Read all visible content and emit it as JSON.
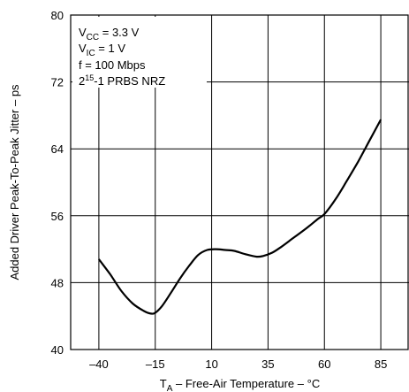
{
  "chart_data": {
    "type": "line",
    "xlabel_main": "T",
    "xlabel_sub": "A",
    "xlabel_rest": " – Free-Air Temperature –  °C",
    "ylabel": "Added Driver Peak-To-Peak Jitter – ps",
    "xticks": [
      -40,
      -15,
      10,
      35,
      60,
      85
    ],
    "xtick_labels": [
      "–40",
      "–15",
      "10",
      "35",
      "60",
      "85"
    ],
    "yticks": [
      40,
      48,
      56,
      64,
      72,
      80
    ],
    "ytick_labels": [
      "40",
      "48",
      "56",
      "64",
      "72",
      "80"
    ],
    "xlim": [
      -52.5,
      97.5
    ],
    "ylim": [
      40,
      80
    ],
    "grid": true,
    "conditions": {
      "vcc_main": "V",
      "vcc_sub": "CC",
      "vcc_rest": " = 3.3 V",
      "vic_main": "V",
      "vic_sub": "IC",
      "vic_rest": "  = 1 V",
      "freq": "f = 100 Mbps",
      "prbs_main": "2",
      "prbs_sup": "15",
      "prbs_rest": "-1 PRBS NRZ"
    },
    "series": [
      {
        "color": "#000000",
        "x": [
          -40,
          -35,
          -30,
          -25,
          -20,
          -17,
          -15,
          -12,
          -8,
          -4,
          0,
          4,
          8,
          12,
          16,
          20,
          25,
          30,
          33,
          37,
          41,
          46,
          52,
          57,
          60,
          65,
          70,
          75,
          80,
          85
        ],
        "y": [
          50.8,
          49.0,
          47.0,
          45.5,
          44.6,
          44.3,
          44.4,
          45.2,
          46.8,
          48.5,
          50.0,
          51.3,
          51.9,
          52.0,
          51.9,
          51.8,
          51.4,
          51.1,
          51.2,
          51.6,
          52.3,
          53.3,
          54.5,
          55.6,
          56.2,
          58.0,
          60.2,
          62.5,
          65.0,
          67.5
        ]
      }
    ]
  }
}
